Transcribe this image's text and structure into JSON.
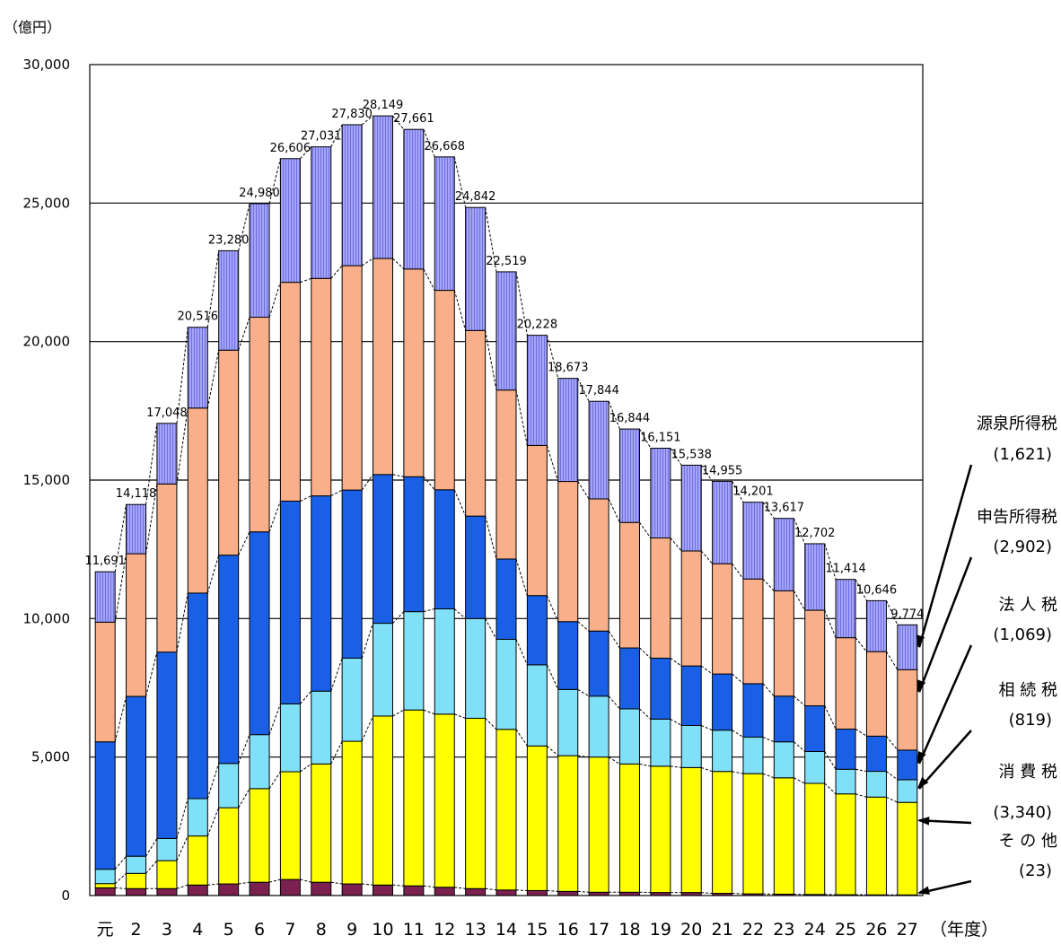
{
  "chart_data": {
    "type": "bar",
    "stacked": true,
    "y_unit": "（億円）",
    "x_unit": "（年度）",
    "ylim": [
      0,
      30000
    ],
    "yticks": [
      "0",
      "5,000",
      "10,000",
      "15,000",
      "20,000",
      "25,000",
      "30,000"
    ],
    "categories": [
      "元",
      "2",
      "3",
      "4",
      "5",
      "6",
      "7",
      "8",
      "9",
      "10",
      "11",
      "12",
      "13",
      "14",
      "15",
      "16",
      "17",
      "18",
      "19",
      "20",
      "21",
      "22",
      "23",
      "24",
      "25",
      "26",
      "27"
    ],
    "totals": [
      11691,
      14118,
      17048,
      20516,
      23280,
      24980,
      26606,
      27031,
      27830,
      28149,
      27661,
      26668,
      24842,
      22519,
      20228,
      18673,
      17844,
      16844,
      16151,
      15538,
      14955,
      14201,
      13617,
      12702,
      11414,
      10646,
      9774
    ],
    "total_labels": [
      "11,691",
      "14,118",
      "17,048",
      "20,516",
      "23,280",
      "24,980",
      "26,606",
      "27,031",
      "27,830",
      "28,149",
      "27,661",
      "26,668",
      "24,842",
      "22,519",
      "20,228",
      "18,673",
      "17,844",
      "16,844",
      "16,151",
      "15,538",
      "14,955",
      "14,201",
      "13,617",
      "12,702",
      "11,414",
      "10,646",
      "9,774"
    ],
    "series": [
      {
        "name": "その他",
        "color": "#7b2150",
        "values": [
          280,
          250,
          250,
          380,
          420,
          480,
          580,
          480,
          420,
          380,
          350,
          300,
          250,
          200,
          180,
          150,
          120,
          120,
          110,
          110,
          80,
          60,
          50,
          40,
          30,
          25,
          23
        ]
      },
      {
        "name": "消費税",
        "color": "#ffff00",
        "values": [
          150,
          550,
          1010,
          1770,
          2750,
          3380,
          3890,
          4270,
          5150,
          6100,
          6350,
          6250,
          6150,
          5800,
          5220,
          4900,
          4880,
          4630,
          4560,
          4510,
          4400,
          4340,
          4200,
          4010,
          3640,
          3530,
          3340
        ]
      },
      {
        "name": "相続税",
        "color": "#80e0f8",
        "values": [
          520,
          620,
          800,
          1350,
          1600,
          1950,
          2450,
          2630,
          3000,
          3350,
          3550,
          3800,
          3600,
          3250,
          2930,
          2390,
          2200,
          1990,
          1700,
          1520,
          1490,
          1320,
          1300,
          1150,
          890,
          930,
          819
        ]
      },
      {
        "name": "法人税",
        "color": "#1a60e6",
        "values": [
          4600,
          5770,
          6730,
          7420,
          7520,
          7320,
          7320,
          7050,
          6070,
          5370,
          4870,
          4300,
          3700,
          2900,
          2500,
          2450,
          2350,
          2200,
          2200,
          2150,
          2030,
          1930,
          1650,
          1650,
          1450,
          1270,
          1069
        ]
      },
      {
        "name": "申告所得税",
        "color": "#f9b08a",
        "values": [
          4320,
          5150,
          6070,
          6680,
          7400,
          7750,
          7900,
          7850,
          8100,
          7800,
          7500,
          7200,
          6700,
          6100,
          5420,
          5060,
          4770,
          4530,
          4340,
          4150,
          3980,
          3780,
          3800,
          3450,
          3300,
          3050,
          2902
        ]
      },
      {
        "name": "源泉所得税",
        "color": "#9a9af4",
        "values": [
          1821,
          1778,
          2188,
          2916,
          3590,
          4100,
          4466,
          4751,
          5090,
          5149,
          5041,
          4818,
          4442,
          4269,
          3978,
          3723,
          3524,
          3374,
          3241,
          3098,
          2975,
          2771,
          2617,
          2402,
          2104,
          1841,
          1621
        ]
      }
    ],
    "legend": [
      {
        "name": "源泉所得税",
        "value": "(1,621)"
      },
      {
        "name": "申告所得税",
        "value": "(2,902)"
      },
      {
        "name": "法 人 税",
        "value": "(1,069)"
      },
      {
        "name": "相 続 税",
        "value": "(819)"
      },
      {
        "name": "消 費 税",
        "value": "(3,340)"
      },
      {
        "name": "そ の 他",
        "value": "(23)"
      }
    ]
  }
}
